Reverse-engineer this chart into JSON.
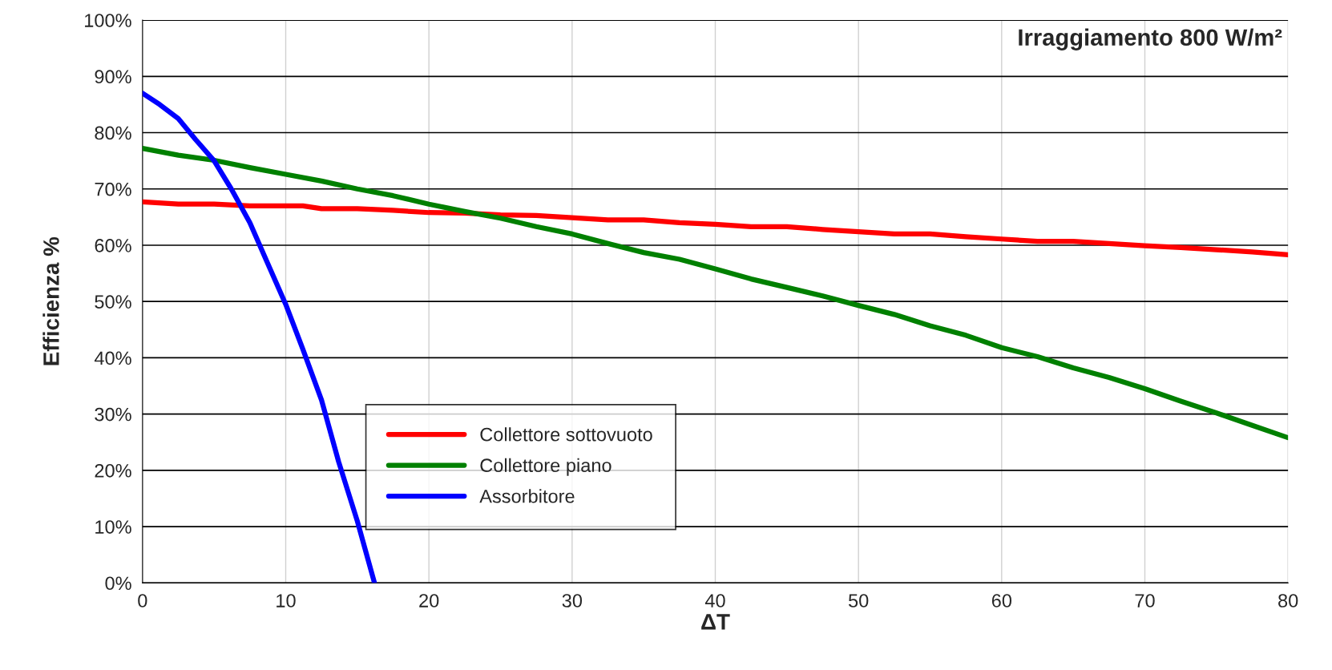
{
  "chart_data": {
    "type": "line",
    "xlabel": "ΔT",
    "ylabel": "Efficienza %",
    "annotations": [
      "Irraggiamento 800 W/m²"
    ],
    "xlim": [
      0,
      80
    ],
    "xticks": [
      0,
      10,
      20,
      30,
      40,
      50,
      60,
      70,
      80
    ],
    "ylim": [
      0,
      100
    ],
    "yticks": [
      {
        "value": 0,
        "label": "0%"
      },
      {
        "value": 10,
        "label": "10%"
      },
      {
        "value": 20,
        "label": "20%"
      },
      {
        "value": 30,
        "label": "30%"
      },
      {
        "value": 40,
        "label": "40%"
      },
      {
        "value": 50,
        "label": "50%"
      },
      {
        "value": 60,
        "label": "60%"
      },
      {
        "value": 70,
        "label": "70%"
      },
      {
        "value": 80,
        "label": "80%"
      },
      {
        "value": 90,
        "label": "90%"
      },
      {
        "value": 100,
        "label": "100%"
      }
    ],
    "grid": true,
    "legend": "bottom",
    "marker": "none",
    "line_style": "solid",
    "series": [
      {
        "name": "Collettore sottovuoto",
        "color": "#ff0000",
        "x": [
          0,
          2.5,
          5,
          7.5,
          10,
          11.2,
          12.5,
          15,
          17.5,
          20,
          22.5,
          25,
          27.5,
          30,
          32.5,
          35,
          37.5,
          40,
          42.5,
          45,
          47.5,
          50,
          52.5,
          55,
          57.5,
          60,
          62.5,
          65,
          67.5,
          70,
          72.5,
          75,
          77.5,
          80
        ],
        "values": [
          67.7,
          67.3,
          67.3,
          67,
          67,
          67,
          66.5,
          66.5,
          66.2,
          65.8,
          65.7,
          65.4,
          65.3,
          64.9,
          64.5,
          64.5,
          64,
          63.7,
          63.3,
          63.3,
          62.8,
          62.4,
          62,
          62,
          61.5,
          61.1,
          60.7,
          60.7,
          60.3,
          59.9,
          59.6,
          59.2,
          58.8,
          58.3
        ]
      },
      {
        "name": "Collettore piano",
        "color": "#008000",
        "x": [
          0,
          2.5,
          5,
          7.5,
          10,
          12.5,
          15,
          17.5,
          20,
          22.5,
          25,
          27.5,
          30,
          32.5,
          35,
          37.5,
          40,
          42.5,
          45,
          47.5,
          50,
          52.5,
          55,
          57.5,
          60,
          62.5,
          65,
          67.5,
          70,
          72.5,
          75,
          77.5,
          80
        ],
        "values": [
          77.2,
          76,
          75.1,
          73.8,
          72.6,
          71.4,
          70,
          68.8,
          67.3,
          66,
          64.8,
          63.3,
          62,
          60.3,
          58.7,
          57.5,
          55.8,
          54,
          52.5,
          51,
          49.3,
          47.7,
          45.7,
          44,
          41.8,
          40.2,
          38.2,
          36.5,
          34.5,
          32.3,
          30.2,
          28,
          25.8
        ]
      },
      {
        "name": "Assorbitore",
        "color": "#0000ff",
        "x": [
          0,
          1.2,
          2.5,
          3.7,
          5,
          6.2,
          7.5,
          8.7,
          10,
          11.2,
          12.5,
          13.7,
          15,
          16.2
        ],
        "values": [
          87,
          85,
          82.5,
          78.8,
          75,
          70,
          64,
          57,
          49.5,
          41.5,
          32.5,
          21.5,
          11,
          0
        ]
      }
    ]
  }
}
